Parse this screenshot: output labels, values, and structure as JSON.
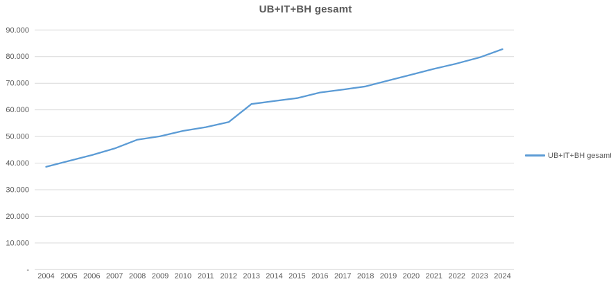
{
  "title": "UB+IT+BH gesamt",
  "legend": {
    "label": "UB+IT+BH gesamt"
  },
  "colors": {
    "line": "#5B9BD5",
    "gridline": "#D9D9D9",
    "axis_line": "#D9D9D9",
    "text": "#595959",
    "title_text": "#595959",
    "background": "#FFFFFF"
  },
  "chart_data": {
    "type": "line",
    "title": "UB+IT+BH gesamt",
    "categories": [
      "2004",
      "2005",
      "2006",
      "2007",
      "2008",
      "2009",
      "2010",
      "2011",
      "2012",
      "2013",
      "2014",
      "2015",
      "2016",
      "2017",
      "2018",
      "2019",
      "2020",
      "2021",
      "2022",
      "2023",
      "2024"
    ],
    "series": [
      {
        "name": "UB+IT+BH gesamt",
        "color": "#5B9BD5",
        "values": [
          38600,
          40800,
          43000,
          45500,
          48800,
          50100,
          52100,
          53500,
          55400,
          62200,
          63300,
          64400,
          66500,
          67600,
          68800,
          71000,
          73200,
          75400,
          77400,
          79700,
          82800
        ]
      }
    ],
    "xlabel": "",
    "ylabel": "",
    "ylim": [
      0,
      90000
    ],
    "ytick_interval": 10000,
    "ytick_labels_bottom_to_top": [
      "-",
      "10.000",
      "20.000",
      "30.000",
      "40.000",
      "50.000",
      "60.000",
      "70.000",
      "80.000",
      "90.000"
    ],
    "grid": true,
    "legend_position": "right"
  }
}
